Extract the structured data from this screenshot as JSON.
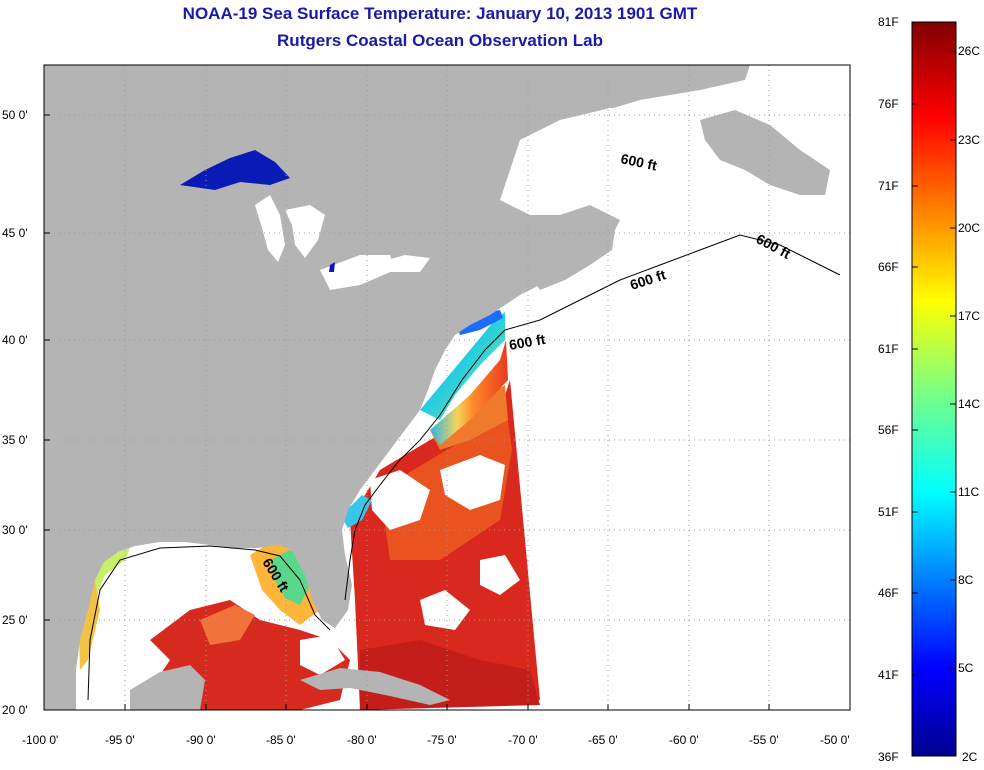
{
  "title": {
    "line1": "NOAA-19 Sea Surface Temperature:  January 10, 2013 1901 GMT",
    "line2": "Rutgers Coastal Ocean Observation Lab"
  },
  "map": {
    "lon_range": [
      -100,
      -50
    ],
    "lat_range": [
      20,
      52.5
    ],
    "lon_ticks": [
      "-100 0'",
      "-95 0'",
      "-90 0'",
      "-85 0'",
      "-80 0'",
      "-75 0'",
      "-70 0'",
      "-65 0'",
      "-60 0'",
      "-55 0'",
      "-50 0'"
    ],
    "lat_ticks": [
      "20 0'",
      "25 0'",
      "30 0'",
      "35 0'",
      "40 0'",
      "45 0'",
      "50 0'"
    ],
    "grid": true,
    "contour_labels": [
      "600 ft",
      "600 ft",
      "600 ft",
      "600 ft",
      "600 ft"
    ],
    "colors": {
      "land": "#b4b4b4",
      "water_nodata": "#ffffff",
      "great_lakes_cold": "#0a1ab4"
    }
  },
  "colorbar": {
    "fahrenheit_labels": [
      "81F",
      "76F",
      "71F",
      "66F",
      "61F",
      "56F",
      "51F",
      "46F",
      "41F",
      "36F"
    ],
    "celsius_labels": [
      "26C",
      "23C",
      "20C",
      "17C",
      "14C",
      "11C",
      "8C",
      "5C",
      "2C"
    ],
    "colormap": "jet"
  }
}
